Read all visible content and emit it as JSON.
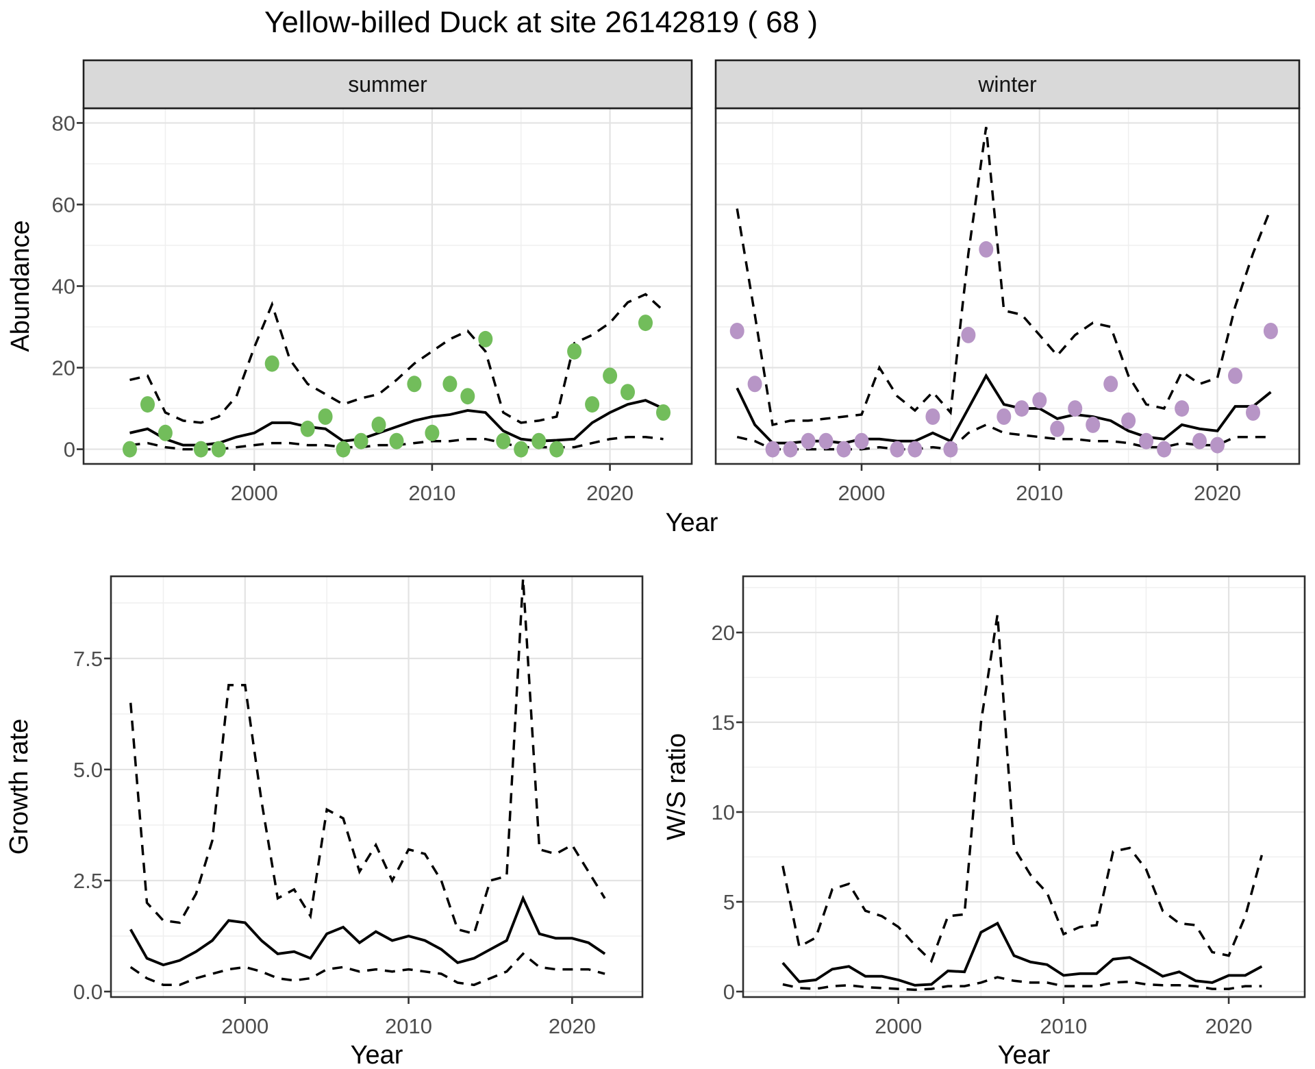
{
  "title": "Yellow-billed Duck at site 26142819 ( 68 )",
  "axis_labels": {
    "x": "Year",
    "abundance": "Abundance",
    "growth": "Growth rate",
    "ws": "W/S ratio"
  },
  "colors": {
    "summer_point": "#72bd5b",
    "winter_point": "#b795c6",
    "line": "#000000",
    "strip_bg": "#d9d9d9",
    "strip_border": "#1f1f1f",
    "panel_border": "#2d2d2d",
    "grid_major": "#e3e3e3",
    "grid_minor": "#efefef",
    "tick_text": "#4d4d4d"
  },
  "chart_data": [
    {
      "id": "abundance_by_season",
      "type": "line",
      "title": "Yellow-billed Duck at site 26142819 ( 68 )",
      "xlabel": "Year",
      "ylabel": "Abundance",
      "legend_position": "none",
      "grid": true,
      "x": [
        1993,
        1994,
        1995,
        1996,
        1997,
        1998,
        1999,
        2000,
        2001,
        2002,
        2003,
        2004,
        2005,
        2006,
        2007,
        2008,
        2009,
        2010,
        2011,
        2012,
        2013,
        2014,
        2015,
        2016,
        2017,
        2018,
        2019,
        2020,
        2021,
        2022,
        2023
      ],
      "xticks": [
        2000,
        2010,
        2020
      ],
      "xtick_labels": [
        "2000",
        "2010",
        "2020"
      ],
      "xminor": [
        1995,
        2005,
        2015
      ],
      "yticks": [
        0,
        20,
        40,
        60,
        80
      ],
      "ytick_labels": [
        "0",
        "20",
        "40",
        "60",
        "80"
      ],
      "yminor": [
        10,
        30,
        50,
        70
      ],
      "ylim": [
        -3.6,
        83.6
      ],
      "facets": [
        {
          "label": "summer",
          "point_color_key": "summer_point",
          "observed": [
            0,
            11,
            4,
            null,
            0,
            0,
            null,
            null,
            21,
            null,
            5,
            8,
            0,
            2,
            6,
            2,
            16,
            4,
            16,
            13,
            27,
            2,
            0,
            2,
            0,
            24,
            11,
            18,
            14,
            31,
            9
          ],
          "series": [
            {
              "name": "median",
              "style": "solid",
              "values": [
                4,
                5,
                2.5,
                1,
                1,
                1.5,
                3,
                4,
                6.5,
                6.5,
                5.5,
                5,
                2,
                2.5,
                4,
                5.5,
                7,
                8,
                8.5,
                9.5,
                9,
                4.5,
                2.5,
                2,
                2.2,
                2.5,
                6.5,
                9,
                11,
                12,
                10
              ]
            },
            {
              "name": "upper_ci",
              "style": "dashed",
              "values": [
                17,
                18,
                9,
                7,
                6.5,
                8,
                13,
                25,
                35.5,
                22,
                16,
                13.5,
                11,
                12.5,
                13.5,
                17,
                21,
                24,
                27,
                29,
                24,
                9,
                6.5,
                7,
                8,
                26,
                28,
                31,
                36,
                38,
                34
              ]
            },
            {
              "name": "lower_ci",
              "style": "dashed",
              "values": [
                1,
                1.5,
                0.5,
                0,
                0,
                0,
                0.5,
                1,
                1.5,
                1.5,
                1,
                1,
                0.5,
                0.5,
                1,
                1,
                1.5,
                2,
                2,
                2.5,
                2.5,
                1.5,
                0.5,
                0.5,
                0.5,
                0.5,
                1.5,
                2.5,
                3,
                3,
                2.5
              ]
            }
          ]
        },
        {
          "label": "winter",
          "point_color_key": "winter_point",
          "observed": [
            29,
            16,
            0,
            0,
            2,
            2,
            0,
            2,
            null,
            0,
            0,
            8,
            0,
            28,
            49,
            8,
            10,
            12,
            5,
            10,
            6,
            16,
            7,
            2,
            0,
            10,
            2,
            1,
            18,
            9,
            29
          ],
          "series": [
            {
              "name": "median",
              "style": "solid",
              "values": [
                15,
                6,
                1.5,
                1.5,
                2,
                2,
                1.5,
                2.5,
                2.5,
                2,
                2,
                4,
                2,
                10,
                18,
                11,
                10,
                10,
                7.5,
                8.5,
                8,
                7,
                4.5,
                3,
                2.5,
                6,
                5,
                4.5,
                10.5,
                10.5,
                14
              ]
            },
            {
              "name": "upper_ci",
              "style": "dashed",
              "values": [
                59,
                33,
                6,
                7,
                7,
                7.5,
                8,
                8.5,
                20,
                13,
                9.5,
                14,
                9,
                48,
                79,
                34,
                33,
                28,
                23,
                28,
                31,
                30,
                18,
                11,
                10,
                19,
                16,
                17.5,
                35,
                48,
                59
              ]
            },
            {
              "name": "lower_ci",
              "style": "dashed",
              "values": [
                3,
                2,
                0,
                0,
                0,
                0,
                0,
                0,
                0.5,
                0,
                0,
                0.5,
                0,
                4,
                6,
                4,
                3.5,
                3,
                2.5,
                2.5,
                2,
                2,
                1.5,
                0.5,
                0.5,
                1.5,
                1,
                1,
                3,
                3,
                3
              ]
            }
          ]
        }
      ]
    },
    {
      "id": "growth_rate",
      "type": "line",
      "title": "",
      "xlabel": "Year",
      "ylabel": "Growth rate",
      "grid": true,
      "x": [
        1993,
        1994,
        1995,
        1996,
        1997,
        1998,
        1999,
        2000,
        2001,
        2002,
        2003,
        2004,
        2005,
        2006,
        2007,
        2008,
        2009,
        2010,
        2011,
        2012,
        2013,
        2014,
        2015,
        2016,
        2017,
        2018,
        2019,
        2020,
        2021,
        2022
      ],
      "xticks": [
        2000,
        2010,
        2020
      ],
      "xtick_labels": [
        "2000",
        "2010",
        "2020"
      ],
      "xminor": [
        1995,
        2005,
        2015
      ],
      "yticks": [
        0.0,
        2.5,
        5.0,
        7.5
      ],
      "ytick_labels": [
        "0.0",
        "2.5",
        "5.0",
        "7.5"
      ],
      "yminor": [
        1.25,
        3.75,
        6.25,
        8.75
      ],
      "ylim": [
        -0.1235,
        9.35
      ],
      "series": [
        {
          "name": "median",
          "style": "solid",
          "values": [
            1.4,
            0.75,
            0.6,
            0.7,
            0.9,
            1.15,
            1.6,
            1.55,
            1.15,
            0.85,
            0.9,
            0.75,
            1.3,
            1.45,
            1.1,
            1.35,
            1.15,
            1.25,
            1.15,
            0.95,
            0.65,
            0.75,
            0.95,
            1.15,
            2.1,
            1.3,
            1.2,
            1.2,
            1.1,
            0.85
          ]
        },
        {
          "name": "upper_ci",
          "style": "dashed",
          "values": [
            6.5,
            2.0,
            1.6,
            1.55,
            2.2,
            3.4,
            6.9,
            6.9,
            4.3,
            2.1,
            2.3,
            1.7,
            4.1,
            3.9,
            2.7,
            3.3,
            2.5,
            3.2,
            3.1,
            2.5,
            1.4,
            1.3,
            2.5,
            2.6,
            9.3,
            3.2,
            3.1,
            3.3,
            2.7,
            2.1
          ]
        },
        {
          "name": "lower_ci",
          "style": "dashed",
          "values": [
            0.55,
            0.3,
            0.15,
            0.15,
            0.3,
            0.4,
            0.5,
            0.55,
            0.45,
            0.3,
            0.25,
            0.3,
            0.5,
            0.55,
            0.45,
            0.5,
            0.45,
            0.5,
            0.45,
            0.4,
            0.2,
            0.15,
            0.3,
            0.45,
            0.85,
            0.55,
            0.5,
            0.5,
            0.5,
            0.4
          ]
        }
      ]
    },
    {
      "id": "ws_ratio",
      "type": "line",
      "title": "",
      "xlabel": "Year",
      "ylabel": "W/S ratio",
      "grid": true,
      "x": [
        1993,
        1994,
        1995,
        1996,
        1997,
        1998,
        1999,
        2000,
        2001,
        2002,
        2003,
        2004,
        2005,
        2006,
        2007,
        2008,
        2009,
        2010,
        2011,
        2012,
        2013,
        2014,
        2015,
        2016,
        2017,
        2018,
        2019,
        2020,
        2021,
        2022
      ],
      "xticks": [
        2000,
        2010,
        2020
      ],
      "xtick_labels": [
        "2000",
        "2010",
        "2020"
      ],
      "xminor": [
        1995,
        2005,
        2015
      ],
      "yticks": [
        0,
        5,
        10,
        15,
        20
      ],
      "ytick_labels": [
        "0",
        "5",
        "10",
        "15",
        "20"
      ],
      "yminor": [
        2.5,
        7.5,
        12.5,
        17.5,
        22.5
      ],
      "ylim": [
        -0.305,
        23.13
      ],
      "series": [
        {
          "name": "median",
          "style": "solid",
          "values": [
            1.6,
            0.55,
            0.65,
            1.25,
            1.4,
            0.85,
            0.85,
            0.65,
            0.35,
            0.4,
            1.15,
            1.1,
            3.3,
            3.8,
            2.0,
            1.65,
            1.5,
            0.9,
            1.0,
            1.0,
            1.8,
            1.9,
            1.4,
            0.85,
            1.1,
            0.6,
            0.5,
            0.9,
            0.9,
            1.4
          ]
        },
        {
          "name": "upper_ci",
          "style": "dashed",
          "values": [
            7.0,
            2.5,
            3.0,
            5.7,
            6.0,
            4.5,
            4.2,
            3.6,
            2.6,
            1.7,
            4.2,
            4.3,
            15,
            21,
            8,
            6.5,
            5.5,
            3.2,
            3.6,
            3.7,
            7.8,
            8.0,
            6.8,
            4.5,
            3.8,
            3.7,
            2.2,
            2.0,
            4.2,
            7.6
          ]
        },
        {
          "name": "lower_ci",
          "style": "dashed",
          "values": [
            0.4,
            0.2,
            0.15,
            0.3,
            0.35,
            0.25,
            0.2,
            0.15,
            0.1,
            0.15,
            0.3,
            0.3,
            0.5,
            0.8,
            0.6,
            0.5,
            0.5,
            0.3,
            0.3,
            0.3,
            0.5,
            0.55,
            0.4,
            0.35,
            0.35,
            0.3,
            0.15,
            0.15,
            0.3,
            0.3
          ]
        }
      ]
    }
  ]
}
